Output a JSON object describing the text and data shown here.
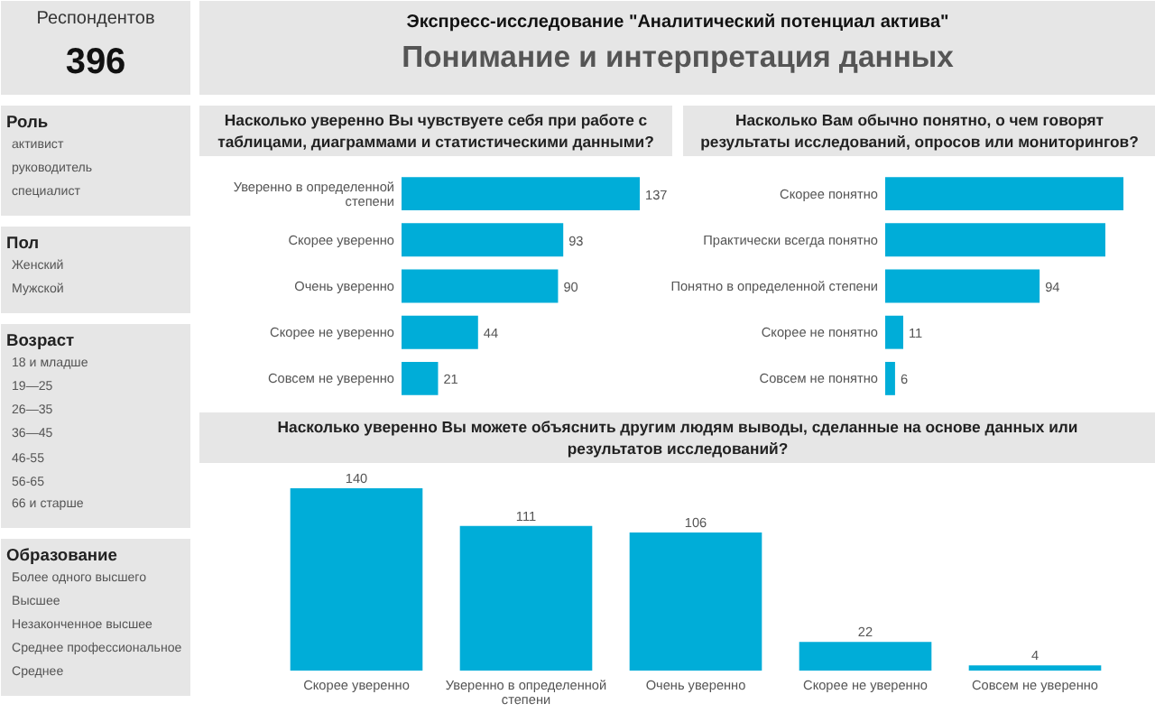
{
  "chart_data": [
    {
      "type": "other",
      "title": "Респондентов",
      "annotations": [
        "396"
      ]
    },
    {
      "type": "other",
      "title": "Роль",
      "annotations": [
        "активист",
        "руководитель",
        "специалист"
      ]
    },
    {
      "type": "other",
      "title": "Пол",
      "annotations": [
        "Женский",
        "Мужской"
      ]
    },
    {
      "type": "other",
      "title": "Возраст",
      "annotations": [
        "18 и младше",
        "19—25",
        "26—35",
        "36—45",
        "46-55",
        "56-65",
        "66 и старше"
      ]
    },
    {
      "type": "other",
      "title": "Образование",
      "annotations": [
        "Более одного высшего",
        "Высшее",
        "Незаконченное высшее",
        "Среднее профессиональное",
        "Среднее"
      ]
    },
    {
      "type": "other",
      "title": "Понимание и интерпретация данных",
      "subtitle": "Экспресс-исследование \"Аналитический потенциал актива\""
    },
    {
      "type": "bar",
      "orientation": "horizontal",
      "title": "Насколько уверенно Вы чувствуете себя при работе с таблицами, диаграммами и статистическими данными?",
      "categories": [
        "Уверенно в определенной степени",
        "Скорее уверенно",
        "Очень уверенно",
        "Скорее не уверенно",
        "Совсем не уверенно"
      ],
      "values": [
        137,
        93,
        90,
        44,
        21
      ],
      "color": "#00add8",
      "data_labels": true
    },
    {
      "type": "bar",
      "orientation": "horizontal",
      "title": "Насколько Вам обычно понятно, о чем говорят результаты исследований, опросов или мониторингов?",
      "categories": [
        "Скорее понятно",
        "Практически всегда понятно",
        "Понятно в определенной степени",
        "Скорее не понятно",
        "Совсем не понятно"
      ],
      "values": [
        145,
        134,
        94,
        11,
        6
      ],
      "value_labels": [
        null,
        null,
        "94",
        "11",
        "6"
      ],
      "color": "#00add8"
    },
    {
      "type": "bar",
      "title": "Насколько уверенно Вы можете объяснить другим людям выводы, сделанные на основе данных или результатов исследований?",
      "categories": [
        "Скорее уверенно",
        "Уверенно в определенной степени",
        "Очень уверенно",
        "Скорее не уверенно",
        "Совсем не уверенно"
      ],
      "values": [
        140,
        111,
        106,
        22,
        4
      ],
      "color": "#00add8",
      "data_labels": true
    }
  ]
}
